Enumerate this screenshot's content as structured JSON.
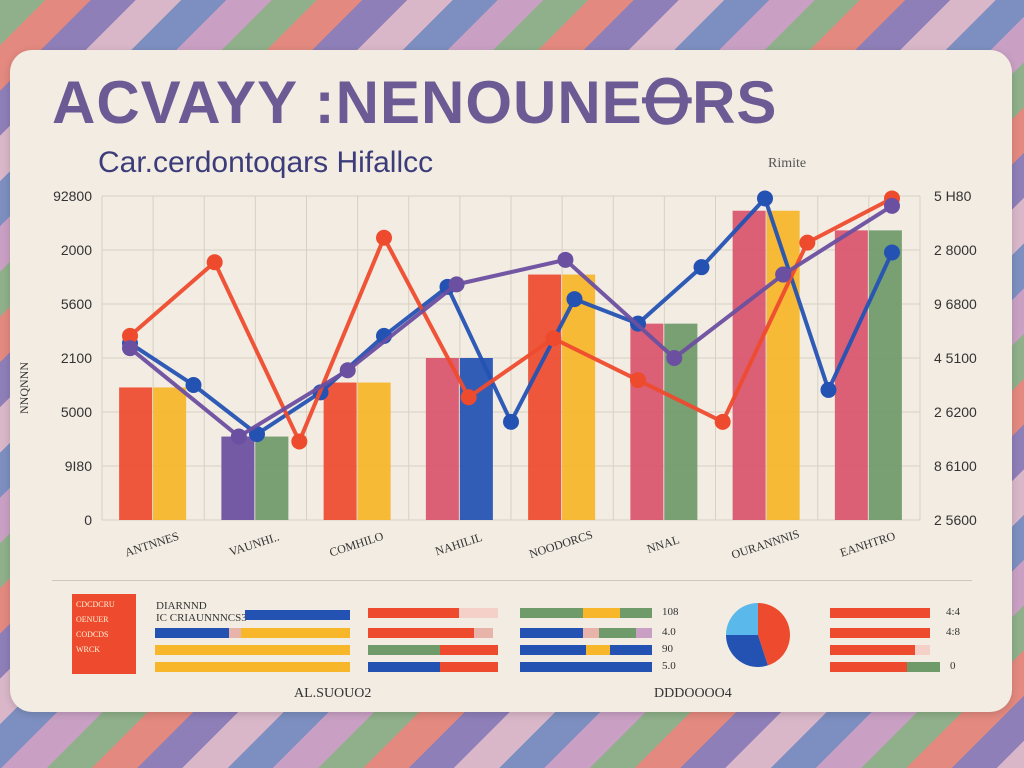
{
  "header": {
    "title": "ACVAYY :NENOUNEꝊRS",
    "subtitle": "Car.cerdontoqars Hifallcc",
    "legend_caption": "Rimite"
  },
  "colors": {
    "red": "#ee4b2e",
    "yellow": "#f8b62a",
    "purple": "#6b4fa0",
    "green": "#6f9a6a",
    "pink": "#d9556e",
    "blue": "#2452b3",
    "light_blue": "#5a80e8",
    "orange": "#f0742a"
  },
  "chart_data": [
    {
      "type": "bar",
      "title": "ACVAYY :NENOUNEꝊRS",
      "subtitle": "Car.cerdontoqars Hifallcc",
      "categories": [
        "ANTNNES",
        "VAUNHI..",
        "COMHILO",
        "NAHILIL",
        "NOODORCS",
        "NNAL",
        "OURANNNIS",
        "EANHTRO"
      ],
      "left_axis_ticks": [
        "0",
        "9I80",
        "5000",
        "2100",
        "5600",
        "2000",
        "92800"
      ],
      "right_axis_ticks": [
        "2 5600",
        "8 6100",
        "2 6200",
        "4 5100",
        "9 6800",
        "2 8000",
        "5 H80"
      ],
      "left_axis_label": "NNQNNN",
      "bar_pairs": [
        {
          "left": 2700,
          "right": 2700,
          "left_color": "#ee4b2e",
          "right_color": "#f8b62a"
        },
        {
          "left": 1700,
          "right": 1700,
          "left_color": "#6b4fa0",
          "right_color": "#6f9a6a"
        },
        {
          "left": 2800,
          "right": 2800,
          "left_color": "#ee4b2e",
          "right_color": "#f8b62a"
        },
        {
          "left": 3300,
          "right": 3300,
          "left_color": "#d9556e",
          "right_color": "#2452b3"
        },
        {
          "left": 5000,
          "right": 5000,
          "left_color": "#ee4b2e",
          "right_color": "#f8b62a"
        },
        {
          "left": 4000,
          "right": 4000,
          "left_color": "#d9556e",
          "right_color": "#6f9a6a"
        },
        {
          "left": 6300,
          "right": 6300,
          "left_color": "#d9556e",
          "right_color": "#f8b62a"
        },
        {
          "left": 5900,
          "right": 5900,
          "left_color": "#d9556e",
          "right_color": "#6f9a6a"
        }
      ],
      "ylim": [
        0,
        6600
      ],
      "series": [
        {
          "color": "#2452b3",
          "points": [
            [
              0,
              3600
            ],
            [
              1,
              2750
            ],
            [
              2,
              1750
            ],
            [
              3,
              2600
            ],
            [
              4,
              3750
            ],
            [
              5,
              4750
            ],
            [
              6,
              2000
            ],
            [
              7,
              4500
            ],
            [
              8,
              4000
            ],
            [
              9,
              5150
            ],
            [
              10,
              6550
            ],
            [
              11,
              2650
            ],
            [
              12,
              5450
            ]
          ]
        },
        {
          "color": "#ee4b2e",
          "points": [
            [
              0,
              3750
            ],
            [
              1,
              5250
            ],
            [
              2,
              1600
            ],
            [
              3,
              5750
            ],
            [
              4,
              2500
            ],
            [
              5,
              3700
            ],
            [
              6,
              2850
            ],
            [
              7,
              2000
            ],
            [
              8,
              5650
            ],
            [
              9,
              6550
            ]
          ]
        },
        {
          "color": "#6b4fa0",
          "points": [
            [
              0,
              3500
            ],
            [
              1,
              1700
            ],
            [
              2,
              3050
            ],
            [
              3,
              4800
            ],
            [
              4,
              5300
            ],
            [
              5,
              3300
            ],
            [
              6,
              5000
            ],
            [
              7,
              6400
            ]
          ]
        }
      ]
    }
  ],
  "bottom": {
    "legend_lines": [
      "CDCDCRU",
      "OENUER",
      "CODCDS",
      "WRCK"
    ],
    "panel_title_1": "DIARNND",
    "panel_title_2": "IC CRIAUNNNCS3",
    "values_a": [
      "108",
      "4.0",
      "90",
      "5.0"
    ],
    "values_b": [
      "4:4",
      "4:8",
      "0"
    ],
    "caption_left": "AL.SUOUO2",
    "caption_right": "DDDOOOO4",
    "pie": [
      {
        "value": 0.45,
        "color": "#ee4b2e"
      },
      {
        "value": 0.3,
        "color": "#2452b3"
      },
      {
        "value": 0.25,
        "color": "#5bb8ea"
      }
    ]
  }
}
